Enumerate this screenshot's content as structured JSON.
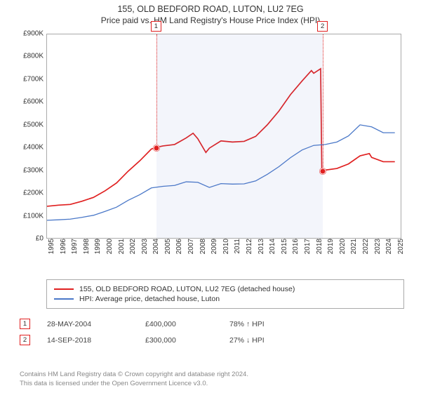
{
  "title": "155, OLD BEDFORD ROAD, LUTON, LU2 7EG",
  "subtitle": "Price paid vs. HM Land Registry's House Price Index (HPI)",
  "chart": {
    "type": "line",
    "background_color": "#ffffff",
    "border_color": "#aaaaaa",
    "x_years": [
      1995,
      1996,
      1997,
      1998,
      1999,
      2000,
      2001,
      2002,
      2003,
      2004,
      2005,
      2006,
      2007,
      2008,
      2009,
      2010,
      2011,
      2012,
      2013,
      2014,
      2015,
      2016,
      2017,
      2018,
      2019,
      2020,
      2021,
      2022,
      2023,
      2024,
      2025
    ],
    "xlim": [
      1995,
      2025.5
    ],
    "y_ticks_k": [
      0,
      100,
      200,
      300,
      400,
      500,
      600,
      700,
      800,
      900
    ],
    "ylim_k": [
      0,
      900
    ],
    "y_prefix": "£",
    "y_suffix": "K",
    "label_fontsize": 10,
    "shade": {
      "from_year": 2004.4,
      "to_year": 2018.7,
      "fill": "rgba(100,130,200,0.08)"
    },
    "series": [
      {
        "name": "155, OLD BEDFORD ROAD, LUTON, LU2 7EG (detached house)",
        "color": "#e02020",
        "line_width": 1.7,
        "points": [
          [
            1995,
            140
          ],
          [
            1996,
            145
          ],
          [
            1997,
            148
          ],
          [
            1998,
            162
          ],
          [
            1999,
            179
          ],
          [
            2000,
            208
          ],
          [
            2001,
            243
          ],
          [
            2002,
            295
          ],
          [
            2003,
            341
          ],
          [
            2004,
            393
          ],
          [
            2004.4,
            400
          ],
          [
            2005,
            407
          ],
          [
            2006,
            413
          ],
          [
            2007,
            442
          ],
          [
            2007.6,
            463
          ],
          [
            2008,
            439
          ],
          [
            2008.7,
            378
          ],
          [
            2009,
            397
          ],
          [
            2010,
            429
          ],
          [
            2011,
            424
          ],
          [
            2012,
            427
          ],
          [
            2013,
            449
          ],
          [
            2014,
            500
          ],
          [
            2015,
            561
          ],
          [
            2016,
            634
          ],
          [
            2017,
            694
          ],
          [
            2017.8,
            740
          ],
          [
            2018,
            728
          ],
          [
            2018.6,
            748
          ],
          [
            2018.7,
            300
          ],
          [
            2019,
            300
          ],
          [
            2020,
            307
          ],
          [
            2021,
            327
          ],
          [
            2022,
            363
          ],
          [
            2022.8,
            373
          ],
          [
            2023,
            356
          ],
          [
            2024,
            337
          ],
          [
            2025,
            337
          ]
        ]
      },
      {
        "name": "HPI: Average price, detached house, Luton",
        "color": "#4a78c8",
        "line_width": 1.3,
        "points": [
          [
            1995,
            78
          ],
          [
            1996,
            80
          ],
          [
            1997,
            83
          ],
          [
            1998,
            91
          ],
          [
            1999,
            100
          ],
          [
            2000,
            117
          ],
          [
            2001,
            136
          ],
          [
            2002,
            166
          ],
          [
            2003,
            191
          ],
          [
            2004,
            221
          ],
          [
            2005,
            228
          ],
          [
            2006,
            232
          ],
          [
            2007,
            248
          ],
          [
            2008,
            246
          ],
          [
            2009,
            223
          ],
          [
            2010,
            240
          ],
          [
            2011,
            238
          ],
          [
            2012,
            239
          ],
          [
            2013,
            252
          ],
          [
            2014,
            281
          ],
          [
            2015,
            315
          ],
          [
            2016,
            355
          ],
          [
            2017,
            389
          ],
          [
            2018,
            409
          ],
          [
            2019,
            413
          ],
          [
            2020,
            424
          ],
          [
            2021,
            451
          ],
          [
            2022,
            500
          ],
          [
            2023,
            491
          ],
          [
            2024,
            465
          ],
          [
            2025,
            465
          ]
        ]
      }
    ],
    "markers": [
      {
        "label": "1",
        "year": 2004.4,
        "value_k": 400,
        "dot_color": "#e02020"
      },
      {
        "label": "2",
        "year": 2018.7,
        "value_k": 300,
        "dot_color": "#e02020"
      }
    ]
  },
  "legend": {
    "rows": [
      {
        "color": "#e02020",
        "label": "155, OLD BEDFORD ROAD, LUTON, LU2 7EG (detached house)"
      },
      {
        "color": "#4a78c8",
        "label": "HPI: Average price, detached house, Luton"
      }
    ]
  },
  "transactions": [
    {
      "label": "1",
      "date": "28-MAY-2004",
      "price": "£400,000",
      "delta_pct": "78%",
      "delta_dir": "↑",
      "delta_suffix": "HPI"
    },
    {
      "label": "2",
      "date": "14-SEP-2018",
      "price": "£300,000",
      "delta_pct": "27%",
      "delta_dir": "↓",
      "delta_suffix": "HPI"
    }
  ],
  "attribution": {
    "line1": "Contains HM Land Registry data © Crown copyright and database right 2024.",
    "line2": "This data is licensed under the Open Government Licence v3.0."
  }
}
